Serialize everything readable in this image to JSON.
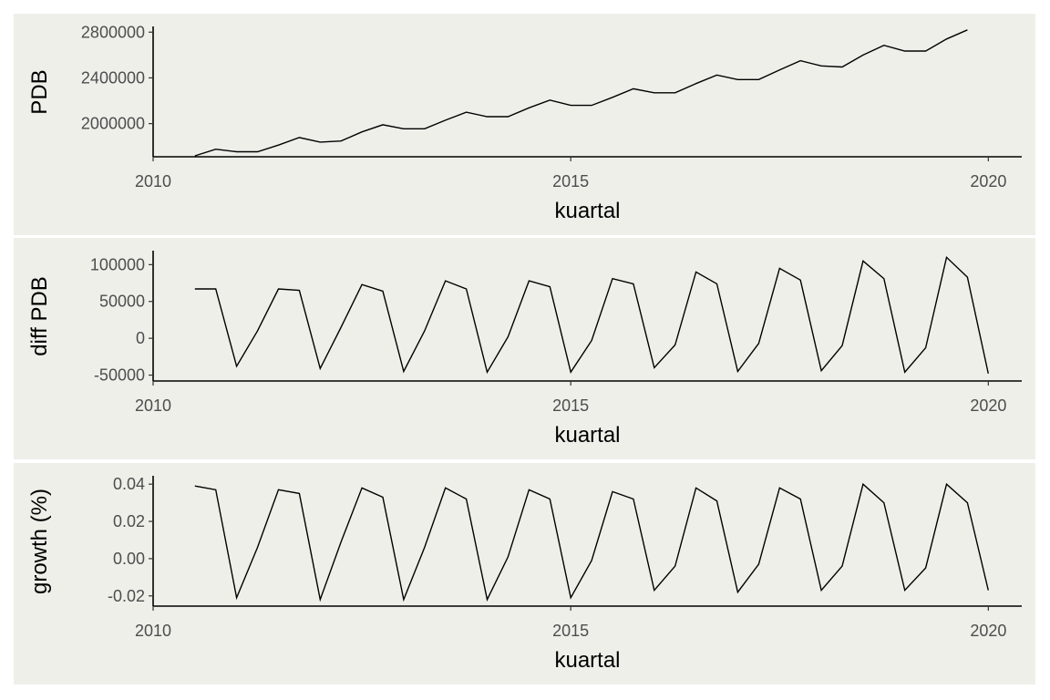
{
  "chart_data": [
    {
      "type": "line",
      "xlabel": "kuartal",
      "ylabel": "PDB",
      "x_ticks": [
        "2010",
        "2015",
        "2020"
      ],
      "x_tick_values": [
        2010,
        2015,
        2020
      ],
      "y_ticks": [
        "2000000",
        "2400000",
        "2800000"
      ],
      "y_tick_values": [
        2000000,
        2400000,
        2800000
      ],
      "xlim": [
        2010,
        2020.4
      ],
      "ylim": [
        1710000,
        2850000
      ],
      "grid": false,
      "x": [
        2010.5,
        2010.75,
        2011.0,
        2011.25,
        2011.5,
        2011.75,
        2012.0,
        2012.25,
        2012.5,
        2012.75,
        2013.0,
        2013.25,
        2013.5,
        2013.75,
        2014.0,
        2014.25,
        2014.5,
        2014.75,
        2015.0,
        2015.25,
        2015.5,
        2015.75,
        2016.0,
        2016.25,
        2016.5,
        2016.75,
        2017.0,
        2017.25,
        2017.5,
        2017.75,
        2018.0,
        2018.25,
        2018.5,
        2018.75,
        2019.0,
        2019.25,
        2019.5,
        2019.75
      ],
      "series": [
        {
          "values": [
            1718000,
            1776000,
            1754000,
            1754000,
            1812000,
            1878000,
            1838000,
            1848000,
            1928000,
            1990000,
            1955000,
            1955000,
            2030000,
            2100000,
            2061000,
            2061000,
            2138000,
            2206000,
            2160000,
            2160000,
            2230000,
            2305000,
            2270000,
            2270000,
            2350000,
            2425000,
            2385000,
            2385000,
            2470000,
            2550000,
            2505000,
            2495000,
            2600000,
            2685000,
            2635000,
            2635000,
            2740000,
            2820000
          ]
        }
      ]
    },
    {
      "type": "line",
      "xlabel": "kuartal",
      "ylabel": "diff PDB",
      "x_ticks": [
        "2010",
        "2015",
        "2020"
      ],
      "x_tick_values": [
        2010,
        2015,
        2020
      ],
      "y_ticks": [
        "-50000",
        "0",
        "50000",
        "100000"
      ],
      "y_tick_values": [
        -50000,
        0,
        50000,
        100000
      ],
      "xlim": [
        2010,
        2020.4
      ],
      "ylim": [
        -58000,
        119000
      ],
      "grid": false,
      "x": [
        2010.5,
        2010.75,
        2011.0,
        2011.25,
        2011.5,
        2011.75,
        2012.0,
        2012.25,
        2012.5,
        2012.75,
        2013.0,
        2013.25,
        2013.5,
        2013.75,
        2014.0,
        2014.25,
        2014.5,
        2014.75,
        2015.0,
        2015.25,
        2015.5,
        2015.75,
        2016.0,
        2016.25,
        2016.5,
        2016.75,
        2017.0,
        2017.25,
        2017.5,
        2017.75,
        2018.0,
        2018.25,
        2018.5,
        2018.75,
        2019.0,
        2019.25,
        2019.5,
        2019.75,
        2020.0
      ],
      "series": [
        {
          "values": [
            67000,
            67000,
            -38000,
            10000,
            67000,
            65000,
            -41000,
            15000,
            73000,
            64000,
            -45000,
            10000,
            78000,
            67000,
            -46000,
            2000,
            78000,
            70000,
            -46000,
            -3000,
            81000,
            74000,
            -40000,
            -9000,
            90000,
            74000,
            -45000,
            -7000,
            95000,
            79000,
            -44000,
            -10000,
            105000,
            81000,
            -46000,
            -13000,
            110000,
            83000,
            -48000
          ]
        }
      ]
    },
    {
      "type": "line",
      "xlabel": "kuartal",
      "ylabel": "growth (%)",
      "x_ticks": [
        "2010",
        "2015",
        "2020"
      ],
      "x_tick_values": [
        2010,
        2015,
        2020
      ],
      "y_ticks": [
        "-0.02",
        "0.00",
        "0.02",
        "0.04"
      ],
      "y_tick_values": [
        -0.02,
        0.0,
        0.02,
        0.04
      ],
      "xlim": [
        2010,
        2020.4
      ],
      "ylim": [
        -0.0255,
        0.0445
      ],
      "grid": false,
      "x": [
        2010.5,
        2010.75,
        2011.0,
        2011.25,
        2011.5,
        2011.75,
        2012.0,
        2012.25,
        2012.5,
        2012.75,
        2013.0,
        2013.25,
        2013.5,
        2013.75,
        2014.0,
        2014.25,
        2014.5,
        2014.75,
        2015.0,
        2015.25,
        2015.5,
        2015.75,
        2016.0,
        2016.25,
        2016.5,
        2016.75,
        2017.0,
        2017.25,
        2017.5,
        2017.75,
        2018.0,
        2018.25,
        2018.5,
        2018.75,
        2019.0,
        2019.25,
        2019.5,
        2019.75,
        2020.0
      ],
      "series": [
        {
          "values": [
            0.039,
            0.037,
            -0.021,
            0.006,
            0.037,
            0.035,
            -0.022,
            0.009,
            0.038,
            0.033,
            -0.022,
            0.006,
            0.038,
            0.032,
            -0.022,
            0.001,
            0.037,
            0.032,
            -0.021,
            -0.001,
            0.036,
            0.032,
            -0.017,
            -0.004,
            0.038,
            0.031,
            -0.018,
            -0.003,
            0.038,
            0.032,
            -0.017,
            -0.004,
            0.04,
            0.03,
            -0.017,
            -0.005,
            0.04,
            0.03,
            -0.017
          ]
        }
      ]
    }
  ]
}
